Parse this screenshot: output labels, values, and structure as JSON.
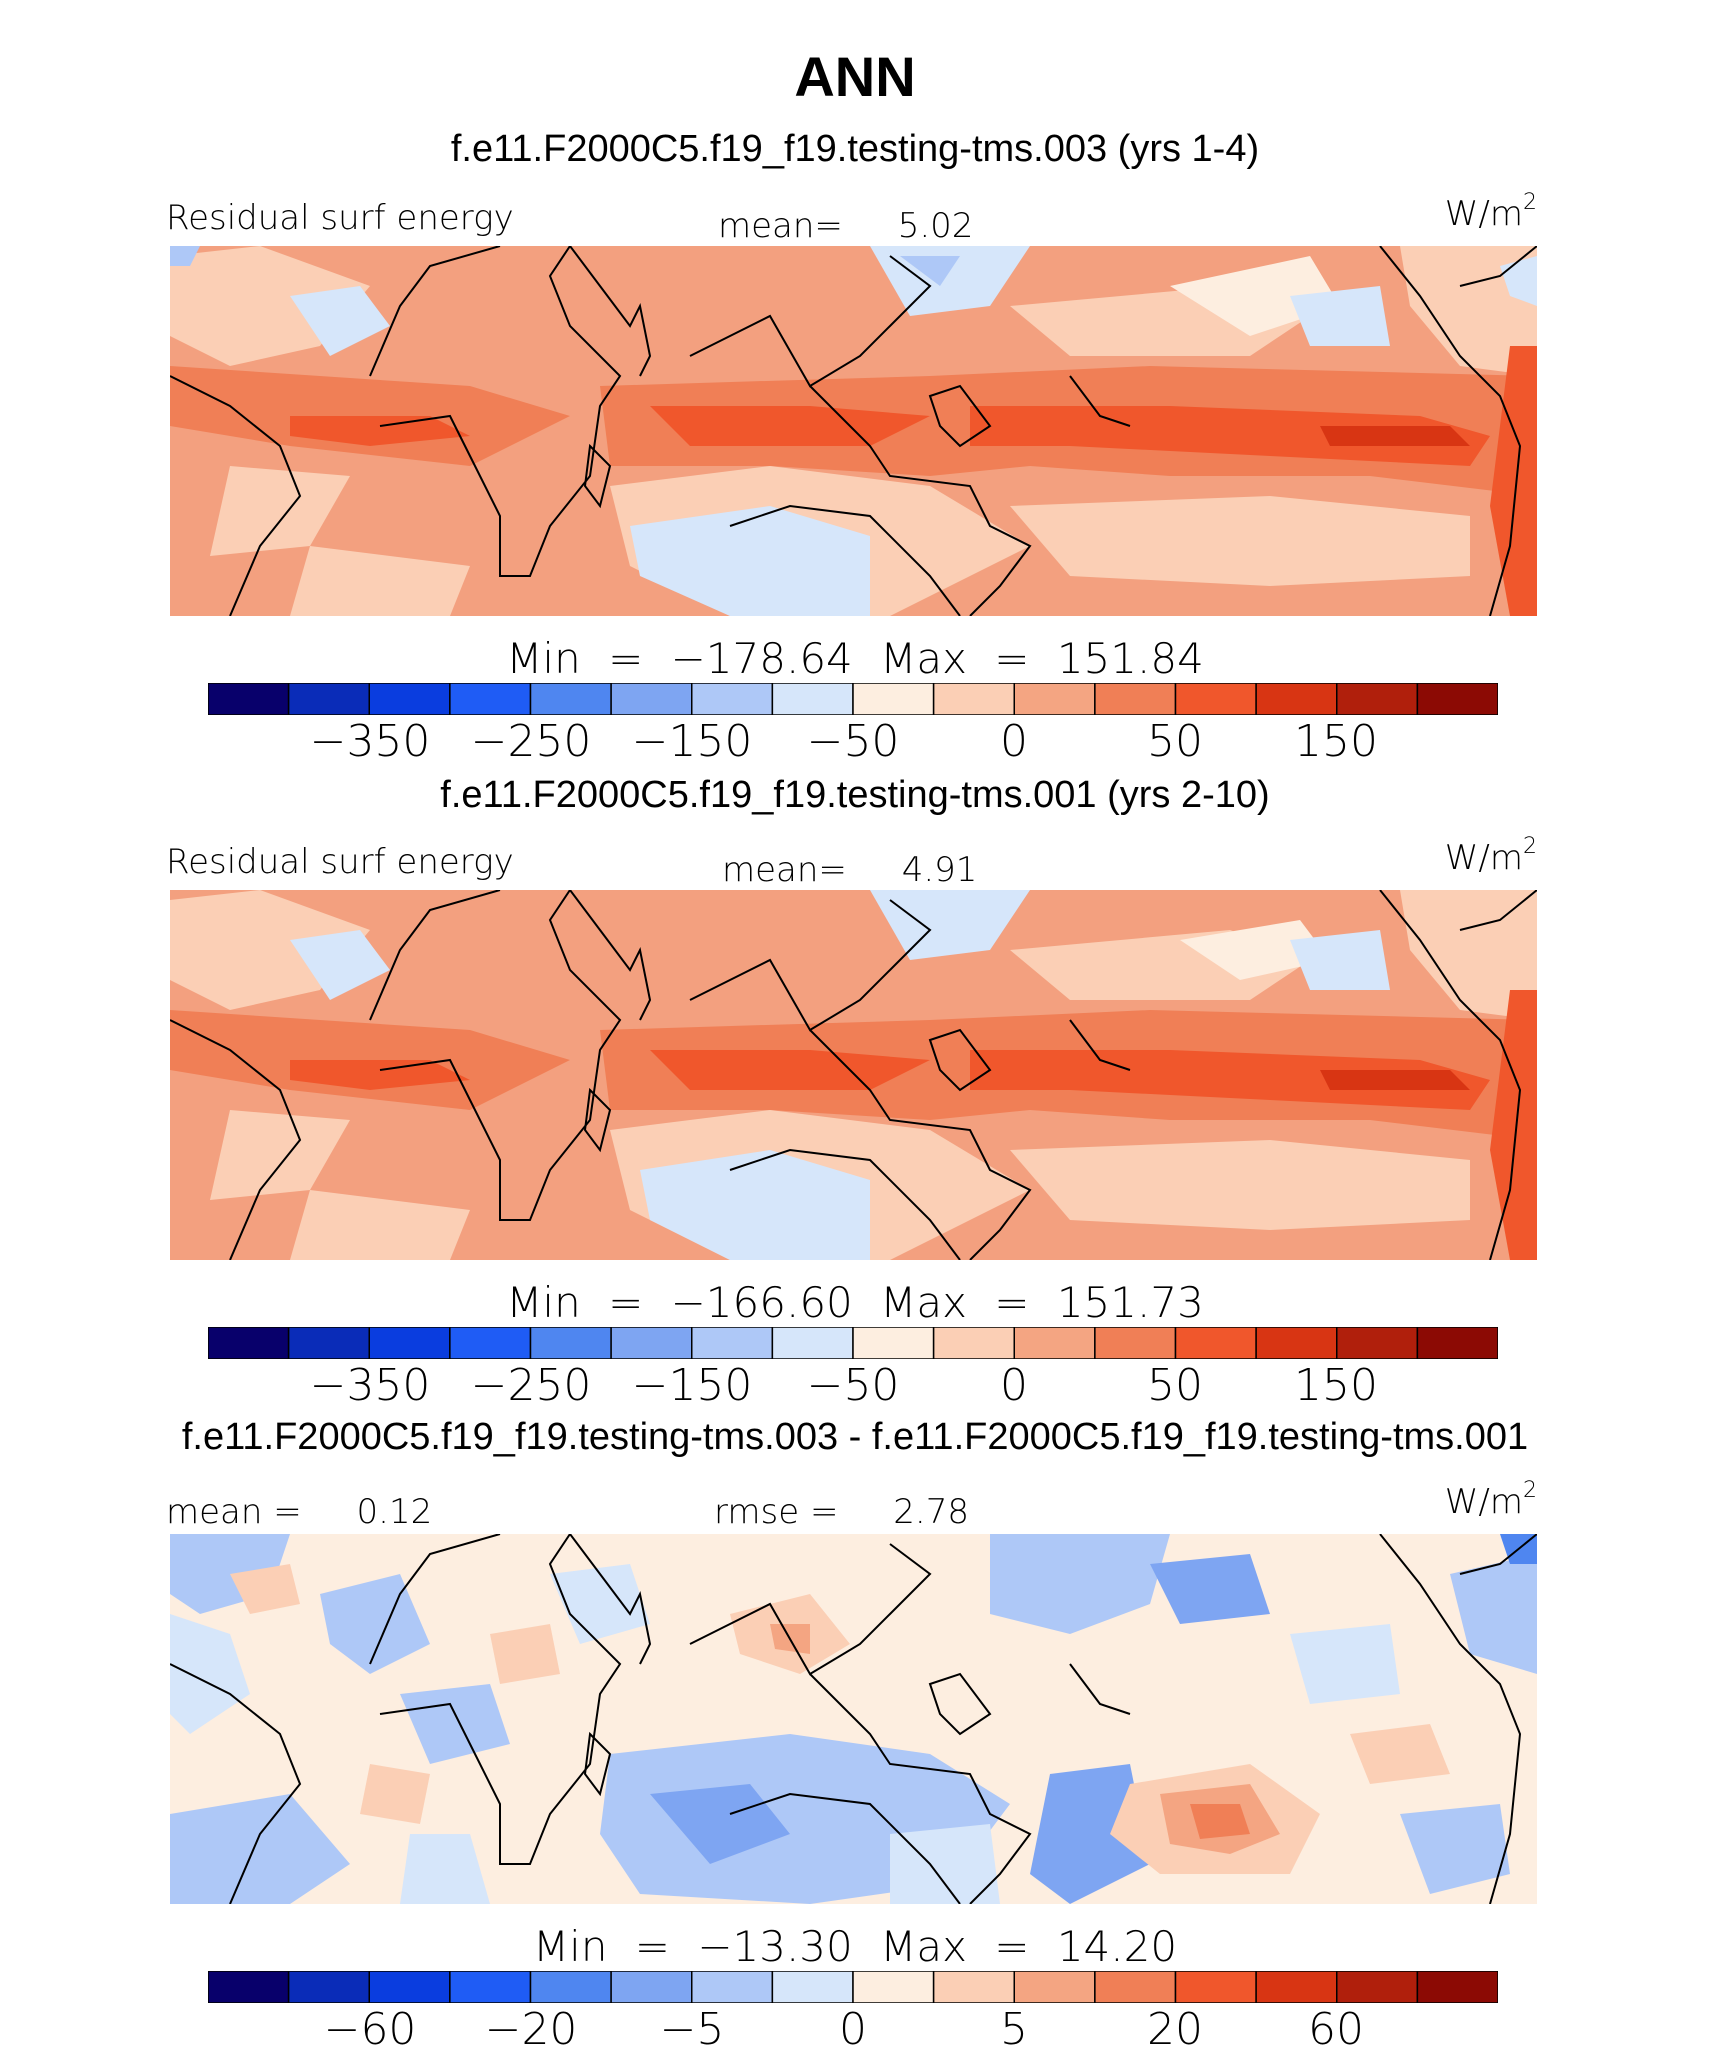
{
  "figure_title": "ANN",
  "panels": [
    {
      "case_title": "f.e11.F2000C5.f19_f19.testing-tms.003 (yrs 1-4)",
      "variable": "Residual surf energy",
      "mean_label": "mean=",
      "mean_value": "5.02",
      "units_base": "W/m",
      "units_sup": "2",
      "minmax": "Min = −178.64 Max = 151.84",
      "colorbar_ticks": [
        "−350",
        "−250",
        "−150",
        "−50",
        "0",
        "50",
        "150"
      ]
    },
    {
      "case_title": "f.e11.F2000C5.f19_f19.testing-tms.001 (yrs 2-10)",
      "variable": "Residual surf energy",
      "mean_label": "mean=",
      "mean_value": "4.91",
      "units_base": "W/m",
      "units_sup": "2",
      "minmax": "Min = −166.60 Max = 151.73",
      "colorbar_ticks": [
        "−350",
        "−250",
        "−150",
        "−50",
        "0",
        "50",
        "150"
      ]
    },
    {
      "case_title": "f.e11.F2000C5.f19_f19.testing-tms.003 - f.e11.F2000C5.f19_f19.testing-tms.001",
      "mean_label": "mean =",
      "mean_value": "0.12",
      "rmse_label": "rmse =",
      "rmse_value": "2.78",
      "units_base": "W/m",
      "units_sup": "2",
      "minmax": "Min = −13.30 Max = 14.20",
      "colorbar_ticks": [
        "−60",
        "−20",
        "−5",
        "0",
        "5",
        "20",
        "60"
      ]
    }
  ],
  "colors": {
    "colorbar": [
      "#08006b",
      "#0a2cb8",
      "#0a3ddf",
      "#1f5cf5",
      "#4f86f0",
      "#7ea5f2",
      "#aec8f7",
      "#d6e6fa",
      "#fdeee0",
      "#fbcfb5",
      "#f4a582",
      "#f07f56",
      "#f0572c",
      "#d83513",
      "#b01f0c",
      "#8c0a04"
    ],
    "map_base_full": "#f3a07f",
    "map_base_diff": "#f7d3bf",
    "coast": "#000000"
  }
}
